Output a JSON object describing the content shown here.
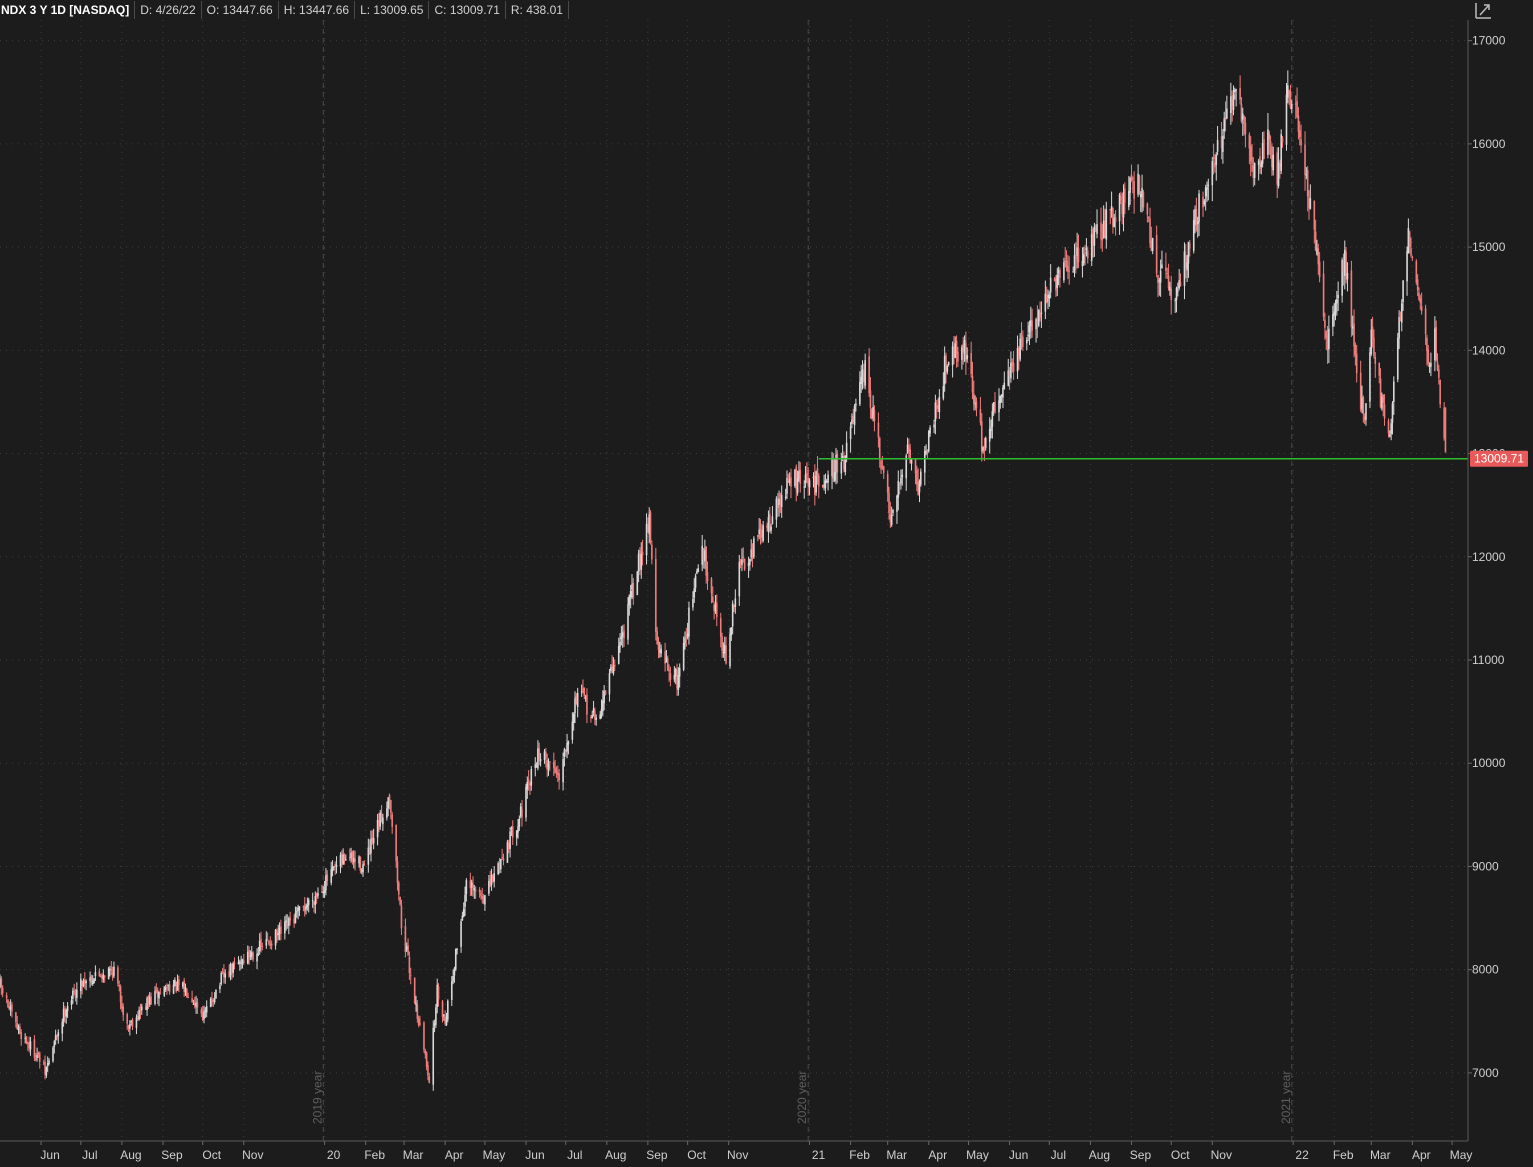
{
  "header": {
    "symbol": "NDX 3 Y 1D [NASDAQ]",
    "date": "D: 4/26/22",
    "open": "O: 13447.66",
    "high": "H: 13447.66",
    "low": "L: 13009.65",
    "close": "C: 13009.71",
    "range": "R: 438.01"
  },
  "colors": {
    "background": "#1c1c1c",
    "up_candle": "#d9d9d9",
    "down_candle": "#f07c7c",
    "support_line": "#2ebd2e",
    "price_badge": "#e85a5a",
    "grid": "#3e3e3e"
  },
  "icons": {
    "fit": "fit-to-screen-icon"
  },
  "chart_data": {
    "type": "candlestick",
    "x_start": "2019-05-01",
    "x_end": "2022-05-13",
    "ylim": [
      6350,
      17200
    ],
    "yticks": [
      7000,
      8000,
      9000,
      10000,
      11000,
      12000,
      13000,
      14000,
      15000,
      16000,
      17000
    ],
    "month_ticks": [
      {
        "label": "Jun",
        "date": "2019-06-01"
      },
      {
        "label": "Jul",
        "date": "2019-07-01"
      },
      {
        "label": "Aug",
        "date": "2019-08-01"
      },
      {
        "label": "Sep",
        "date": "2019-09-01"
      },
      {
        "label": "Oct",
        "date": "2019-10-01"
      },
      {
        "label": "Nov",
        "date": "2019-11-01"
      },
      {
        "label": "20",
        "date": "2020-01-01"
      },
      {
        "label": "Feb",
        "date": "2020-02-01"
      },
      {
        "label": "Mar",
        "date": "2020-03-01"
      },
      {
        "label": "Apr",
        "date": "2020-04-01"
      },
      {
        "label": "May",
        "date": "2020-05-01"
      },
      {
        "label": "Jun",
        "date": "2020-06-01"
      },
      {
        "label": "Jul",
        "date": "2020-07-01"
      },
      {
        "label": "Aug",
        "date": "2020-08-01"
      },
      {
        "label": "Sep",
        "date": "2020-09-01"
      },
      {
        "label": "Oct",
        "date": "2020-10-01"
      },
      {
        "label": "Nov",
        "date": "2020-11-01"
      },
      {
        "label": "21",
        "date": "2021-01-01"
      },
      {
        "label": "Feb",
        "date": "2021-02-01"
      },
      {
        "label": "Mar",
        "date": "2021-03-01"
      },
      {
        "label": "Apr",
        "date": "2021-04-01"
      },
      {
        "label": "May",
        "date": "2021-05-01"
      },
      {
        "label": "Jun",
        "date": "2021-06-01"
      },
      {
        "label": "Jul",
        "date": "2021-07-01"
      },
      {
        "label": "Aug",
        "date": "2021-08-01"
      },
      {
        "label": "Sep",
        "date": "2021-09-01"
      },
      {
        "label": "Oct",
        "date": "2021-10-01"
      },
      {
        "label": "Nov",
        "date": "2021-11-01"
      },
      {
        "label": "22",
        "date": "2022-01-01"
      },
      {
        "label": "Feb",
        "date": "2022-02-01"
      },
      {
        "label": "Mar",
        "date": "2022-03-01"
      },
      {
        "label": "Apr",
        "date": "2022-04-01"
      },
      {
        "label": "May",
        "date": "2022-05-01"
      }
    ],
    "year_markers": [
      {
        "label": "2019 year",
        "date": "2019-12-31"
      },
      {
        "label": "2020 year",
        "date": "2020-12-31"
      },
      {
        "label": "2021 year",
        "date": "2021-12-31"
      }
    ],
    "support_line": {
      "value": 12950,
      "start_date": "2021-01-08",
      "end_date": "2022-05-13"
    },
    "last_price_label": "13009.71",
    "last_price": 13009.71,
    "close_path": [
      [
        "2019-05-01",
        7850
      ],
      [
        "2019-05-13",
        7450
      ],
      [
        "2019-05-31",
        7130
      ],
      [
        "2019-06-04",
        7000
      ],
      [
        "2019-06-20",
        7650
      ],
      [
        "2019-07-03",
        7900
      ],
      [
        "2019-07-26",
        8000
      ],
      [
        "2019-08-05",
        7450
      ],
      [
        "2019-08-22",
        7700
      ],
      [
        "2019-09-06",
        7850
      ],
      [
        "2019-09-20",
        7800
      ],
      [
        "2019-10-02",
        7550
      ],
      [
        "2019-10-15",
        7900
      ],
      [
        "2019-10-31",
        8100
      ],
      [
        "2019-11-29",
        8350
      ],
      [
        "2019-12-27",
        8750
      ],
      [
        "2020-01-17",
        9100
      ],
      [
        "2020-01-31",
        9000
      ],
      [
        "2020-02-19",
        9700
      ],
      [
        "2020-02-28",
        8450
      ],
      [
        "2020-03-12",
        7500
      ],
      [
        "2020-03-20",
        6950
      ],
      [
        "2020-03-26",
        7800
      ],
      [
        "2020-04-01",
        7500
      ],
      [
        "2020-04-17",
        8800
      ],
      [
        "2020-05-01",
        8700
      ],
      [
        "2020-05-29",
        9550
      ],
      [
        "2020-06-10",
        10100
      ],
      [
        "2020-06-26",
        9900
      ],
      [
        "2020-07-10",
        10700
      ],
      [
        "2020-07-24",
        10400
      ],
      [
        "2020-08-14",
        11300
      ],
      [
        "2020-09-02",
        12400
      ],
      [
        "2020-09-08",
        11100
      ],
      [
        "2020-09-23",
        10800
      ],
      [
        "2020-10-12",
        12100
      ],
      [
        "2020-10-30",
        11000
      ],
      [
        "2020-11-09",
        11900
      ],
      [
        "2020-11-30",
        12300
      ],
      [
        "2020-12-18",
        12750
      ],
      [
        "2021-01-04",
        12700
      ],
      [
        "2021-01-27",
        12950
      ],
      [
        "2021-02-12",
        13800
      ],
      [
        "2021-03-04",
        12300
      ],
      [
        "2021-03-16",
        13100
      ],
      [
        "2021-03-24",
        12700
      ],
      [
        "2021-04-16",
        14000
      ],
      [
        "2021-04-29",
        14000
      ],
      [
        "2021-05-12",
        13050
      ],
      [
        "2021-05-26",
        13650
      ],
      [
        "2021-06-30",
        14550
      ],
      [
        "2021-07-16",
        14800
      ],
      [
        "2021-07-30",
        15000
      ],
      [
        "2021-08-31",
        15550
      ],
      [
        "2021-09-07",
        15650
      ],
      [
        "2021-09-20",
        14800
      ],
      [
        "2021-10-04",
        14500
      ],
      [
        "2021-10-22",
        15400
      ],
      [
        "2021-11-19",
        16500
      ],
      [
        "2021-12-03",
        15700
      ],
      [
        "2021-12-13",
        16100
      ],
      [
        "2021-12-20",
        15600
      ],
      [
        "2021-12-27",
        16500
      ],
      [
        "2022-01-04",
        16300
      ],
      [
        "2022-01-27",
        14100
      ],
      [
        "2022-02-09",
        14900
      ],
      [
        "2022-02-23",
        13300
      ],
      [
        "2022-03-01",
        14100
      ],
      [
        "2022-03-14",
        13100
      ],
      [
        "2022-03-29",
        15200
      ],
      [
        "2022-04-06",
        14500
      ],
      [
        "2022-04-14",
        13900
      ],
      [
        "2022-04-18",
        14100
      ],
      [
        "2022-04-26",
        13009.71
      ]
    ]
  }
}
